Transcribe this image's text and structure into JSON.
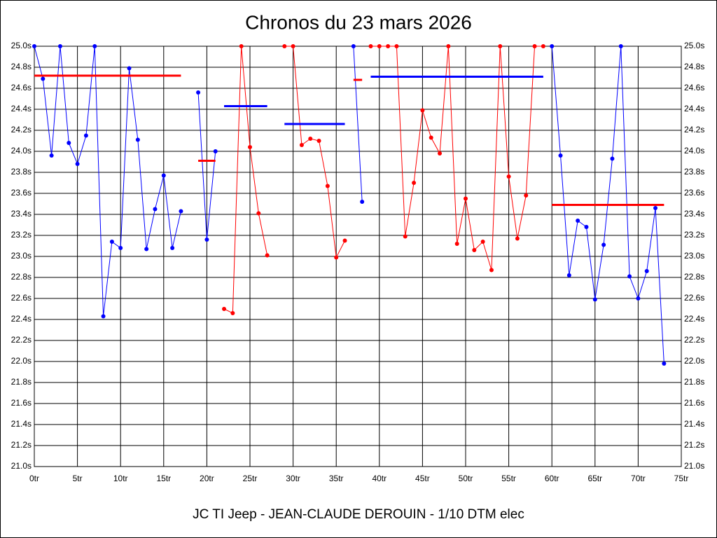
{
  "chart_data": {
    "type": "line",
    "title": "Chronos du 23 mars 2026",
    "footer": "JC TI Jeep - JEAN-CLAUDE DEROUIN - 1/10 DTM elec",
    "xlim": [
      0,
      75
    ],
    "ylim": [
      21.0,
      25.0
    ],
    "grid": true,
    "xticks": [
      {
        "value": 0,
        "label": "0tr"
      },
      {
        "value": 5,
        "label": "5tr"
      },
      {
        "value": 10,
        "label": "10tr"
      },
      {
        "value": 15,
        "label": "15tr"
      },
      {
        "value": 20,
        "label": "20tr"
      },
      {
        "value": 25,
        "label": "25tr"
      },
      {
        "value": 30,
        "label": "30tr"
      },
      {
        "value": 35,
        "label": "35tr"
      },
      {
        "value": 40,
        "label": "40tr"
      },
      {
        "value": 45,
        "label": "45tr"
      },
      {
        "value": 50,
        "label": "50tr"
      },
      {
        "value": 55,
        "label": "55tr"
      },
      {
        "value": 60,
        "label": "60tr"
      },
      {
        "value": 65,
        "label": "65tr"
      },
      {
        "value": 70,
        "label": "70tr"
      },
      {
        "value": 75,
        "label": "75tr"
      }
    ],
    "yticks": [
      {
        "value": 21.0,
        "label": "21.0s"
      },
      {
        "value": 21.2,
        "label": "21.2s"
      },
      {
        "value": 21.4,
        "label": "21.4s"
      },
      {
        "value": 21.6,
        "label": "21.6s"
      },
      {
        "value": 21.8,
        "label": "21.8s"
      },
      {
        "value": 22.0,
        "label": "22.0s"
      },
      {
        "value": 22.2,
        "label": "22.2s"
      },
      {
        "value": 22.4,
        "label": "22.4s"
      },
      {
        "value": 22.6,
        "label": "22.6s"
      },
      {
        "value": 22.8,
        "label": "22.8s"
      },
      {
        "value": 23.0,
        "label": "23.0s"
      },
      {
        "value": 23.2,
        "label": "23.2s"
      },
      {
        "value": 23.4,
        "label": "23.4s"
      },
      {
        "value": 23.6,
        "label": "23.6s"
      },
      {
        "value": 23.8,
        "label": "23.8s"
      },
      {
        "value": 24.0,
        "label": "24.0s"
      },
      {
        "value": 24.2,
        "label": "24.2s"
      },
      {
        "value": 24.4,
        "label": "24.4s"
      },
      {
        "value": 24.6,
        "label": "24.6s"
      },
      {
        "value": 24.8,
        "label": "24.8s"
      },
      {
        "value": 25.0,
        "label": "25.0s"
      }
    ],
    "series": [
      {
        "color": "#0000ff",
        "average": 24.72,
        "average_color": "#ff0000",
        "x": [
          0,
          1,
          2,
          3,
          4,
          5,
          6,
          7,
          8,
          9,
          10,
          11,
          12,
          13,
          14,
          15,
          16,
          17
        ],
        "values": [
          25.0,
          24.69,
          23.96,
          25.0,
          24.08,
          23.88,
          24.15,
          25.0,
          22.43,
          23.14,
          23.08,
          24.79,
          24.11,
          23.07,
          23.45,
          23.77,
          23.08,
          23.43
        ]
      },
      {
        "color": "#0000ff",
        "average": 23.91,
        "average_color": "#ff0000",
        "x": [
          19,
          20,
          21
        ],
        "values": [
          24.56,
          23.16,
          24.0
        ]
      },
      {
        "color": "#ff0000",
        "average": 24.43,
        "average_color": "#0000ff",
        "x": [
          22,
          23,
          24,
          25,
          26,
          27
        ],
        "values": [
          22.5,
          22.46,
          25.0,
          24.04,
          23.41,
          23.01
        ]
      },
      {
        "color": "#ff0000",
        "average": 24.26,
        "average_color": "#0000ff",
        "x": [
          29,
          30,
          31,
          32,
          33,
          34,
          35,
          36
        ],
        "values": [
          25.0,
          25.0,
          24.06,
          24.12,
          24.1,
          23.67,
          22.99,
          23.15
        ]
      },
      {
        "color": "#0000ff",
        "average": 24.68,
        "average_color": "#ff0000",
        "x": [
          37,
          38
        ],
        "values": [
          25.0,
          23.52
        ]
      },
      {
        "color": "#ff0000",
        "average": 24.71,
        "average_color": "#0000ff",
        "x": [
          39,
          40,
          41,
          42,
          43,
          44,
          45,
          46,
          47,
          48,
          49,
          50,
          51,
          52,
          53,
          54,
          55,
          56,
          57,
          58,
          59
        ],
        "values": [
          25.0,
          25.0,
          25.0,
          25.0,
          23.19,
          23.7,
          24.39,
          24.13,
          23.98,
          25.0,
          23.12,
          23.55,
          23.06,
          23.14,
          22.87,
          25.0,
          23.76,
          23.17,
          23.58,
          25.0,
          25.0
        ]
      },
      {
        "color": "#0000ff",
        "average": 23.49,
        "average_color": "#ff0000",
        "x": [
          60,
          61,
          62,
          63,
          64,
          65,
          66,
          67,
          68,
          69,
          70,
          71,
          72,
          73
        ],
        "values": [
          25.0,
          23.96,
          22.82,
          23.34,
          23.28,
          22.59,
          23.11,
          23.93,
          25.0,
          22.81,
          22.6,
          22.86,
          23.46,
          21.98
        ]
      }
    ]
  }
}
